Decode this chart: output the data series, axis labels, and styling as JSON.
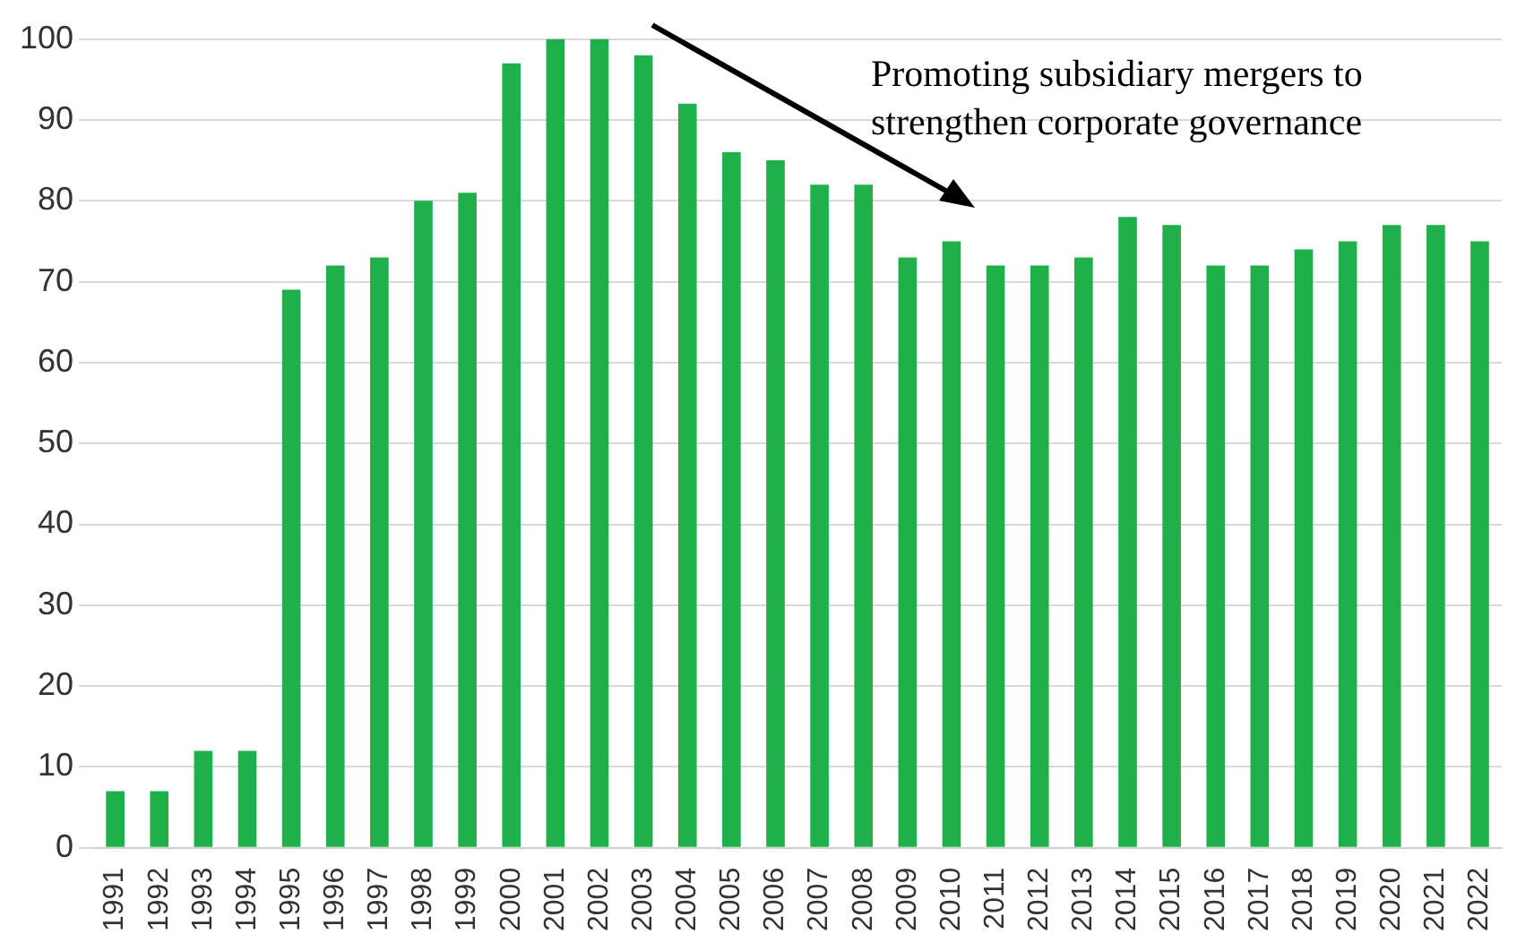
{
  "chart_data": {
    "type": "bar",
    "categories": [
      "1991",
      "1992",
      "1993",
      "1994",
      "1995",
      "1996",
      "1997",
      "1998",
      "1999",
      "2000",
      "2001",
      "2002",
      "2003",
      "2004",
      "2005",
      "2006",
      "2007",
      "2008",
      "2009",
      "2010",
      "2011",
      "2012",
      "2013",
      "2014",
      "2015",
      "2016",
      "2017",
      "2018",
      "2019",
      "2020",
      "2021",
      "2022"
    ],
    "values": [
      7,
      7,
      12,
      12,
      69,
      72,
      73,
      80,
      81,
      97,
      100,
      100,
      98,
      92,
      86,
      85,
      82,
      82,
      73,
      75,
      72,
      72,
      73,
      78,
      77,
      72,
      72,
      74,
      75,
      77,
      77,
      75
    ],
    "color": "#1fb04c",
    "ylim": [
      0,
      100
    ],
    "yticks": [
      0,
      10,
      20,
      30,
      40,
      50,
      60,
      70,
      80,
      90,
      100
    ],
    "grid": "y",
    "annotations": [
      "Promoting subsidiary mergers to strengthen corporate governance"
    ]
  }
}
